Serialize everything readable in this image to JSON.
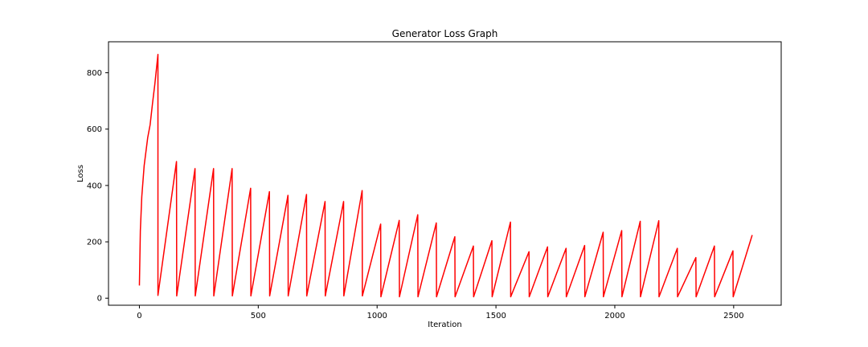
{
  "chart_data": {
    "type": "line",
    "title": "Generator Loss Graph",
    "xlabel": "Iteration",
    "ylabel": "Loss",
    "xlim": [
      -130,
      2700
    ],
    "ylim": [
      -25,
      910
    ],
    "xticks": [
      0,
      500,
      1000,
      1500,
      2000,
      2500
    ],
    "yticks": [
      0,
      200,
      400,
      600,
      800
    ],
    "grid": false,
    "series": [
      {
        "color": "#ff0000",
        "points": [
          [
            0,
            45
          ],
          [
            4,
            240
          ],
          [
            10,
            360
          ],
          [
            20,
            470
          ],
          [
            35,
            570
          ],
          [
            45,
            615
          ],
          [
            55,
            690
          ],
          [
            65,
            760
          ],
          [
            78,
            865
          ],
          [
            78,
            10
          ],
          [
            78,
            10
          ],
          [
            156,
            485
          ],
          [
            157,
            8
          ],
          [
            157,
            8
          ],
          [
            234,
            460
          ],
          [
            235,
            8
          ],
          [
            235,
            8
          ],
          [
            312,
            460
          ],
          [
            313,
            8
          ],
          [
            313,
            8
          ],
          [
            390,
            460
          ],
          [
            391,
            8
          ],
          [
            391,
            8
          ],
          [
            468,
            390
          ],
          [
            469,
            8
          ],
          [
            469,
            8
          ],
          [
            547,
            378
          ],
          [
            548,
            8
          ],
          [
            548,
            8
          ],
          [
            625,
            365
          ],
          [
            626,
            8
          ],
          [
            626,
            8
          ],
          [
            703,
            368
          ],
          [
            704,
            8
          ],
          [
            704,
            8
          ],
          [
            781,
            343
          ],
          [
            782,
            8
          ],
          [
            782,
            8
          ],
          [
            859,
            343
          ],
          [
            860,
            8
          ],
          [
            860,
            8
          ],
          [
            937,
            382
          ],
          [
            938,
            8
          ],
          [
            938,
            8
          ],
          [
            1015,
            263
          ],
          [
            1016,
            5
          ],
          [
            1016,
            5
          ],
          [
            1093,
            276
          ],
          [
            1094,
            5
          ],
          [
            1094,
            5
          ],
          [
            1171,
            296
          ],
          [
            1172,
            5
          ],
          [
            1172,
            5
          ],
          [
            1249,
            267
          ],
          [
            1250,
            5
          ],
          [
            1250,
            5
          ],
          [
            1327,
            218
          ],
          [
            1328,
            5
          ],
          [
            1328,
            5
          ],
          [
            1405,
            185
          ],
          [
            1406,
            5
          ],
          [
            1406,
            5
          ],
          [
            1483,
            204
          ],
          [
            1484,
            5
          ],
          [
            1484,
            5
          ],
          [
            1561,
            270
          ],
          [
            1562,
            5
          ],
          [
            1562,
            5
          ],
          [
            1639,
            165
          ],
          [
            1640,
            5
          ],
          [
            1640,
            5
          ],
          [
            1717,
            182
          ],
          [
            1718,
            5
          ],
          [
            1718,
            5
          ],
          [
            1795,
            177
          ],
          [
            1796,
            5
          ],
          [
            1796,
            5
          ],
          [
            1873,
            187
          ],
          [
            1874,
            5
          ],
          [
            1874,
            5
          ],
          [
            1951,
            234
          ],
          [
            1952,
            5
          ],
          [
            1952,
            5
          ],
          [
            2029,
            240
          ],
          [
            2030,
            5
          ],
          [
            2030,
            5
          ],
          [
            2107,
            273
          ],
          [
            2108,
            5
          ],
          [
            2108,
            5
          ],
          [
            2185,
            275
          ],
          [
            2186,
            5
          ],
          [
            2186,
            5
          ],
          [
            2263,
            177
          ],
          [
            2264,
            5
          ],
          [
            2264,
            5
          ],
          [
            2341,
            144
          ],
          [
            2342,
            5
          ],
          [
            2342,
            5
          ],
          [
            2419,
            185
          ],
          [
            2420,
            5
          ],
          [
            2420,
            5
          ],
          [
            2497,
            168
          ],
          [
            2498,
            5
          ],
          [
            2498,
            5
          ],
          [
            2578,
            224
          ]
        ]
      }
    ]
  }
}
